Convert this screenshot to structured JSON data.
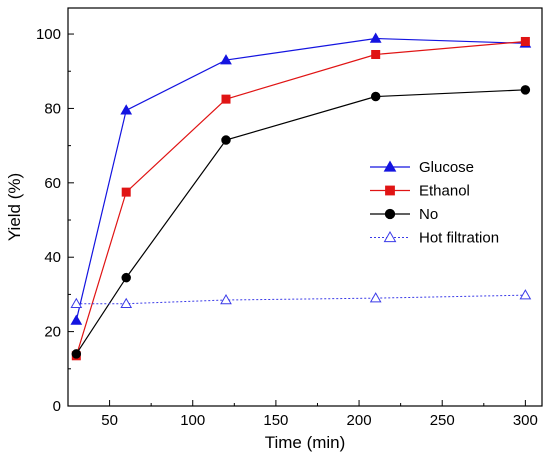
{
  "chart_data": {
    "type": "line",
    "title": "",
    "xlabel": "Time (min)",
    "ylabel": "Yield (%)",
    "xlim": [
      25,
      310
    ],
    "ylim": [
      0,
      107
    ],
    "xticks": [
      50,
      100,
      150,
      200,
      250,
      300
    ],
    "yticks": [
      0,
      20,
      40,
      60,
      80,
      100
    ],
    "grid": false,
    "legend_position": "right",
    "series": [
      {
        "name": "Glucose",
        "color": "#1414e0",
        "marker": "triangle-filled",
        "line": "solid",
        "x": [
          30,
          60,
          120,
          210,
          300
        ],
        "y": [
          23,
          79.5,
          93,
          98.8,
          97.5
        ]
      },
      {
        "name": "Ethanol",
        "color": "#e01414",
        "marker": "square-filled",
        "line": "solid",
        "x": [
          30,
          60,
          120,
          210,
          300
        ],
        "y": [
          13.5,
          57.5,
          82.5,
          94.5,
          98
        ]
      },
      {
        "name": "No",
        "color": "#000000",
        "marker": "circle-filled",
        "line": "solid",
        "x": [
          30,
          60,
          120,
          210,
          300
        ],
        "y": [
          14,
          34.5,
          71.5,
          83.2,
          85
        ]
      },
      {
        "name": "Hot filtration",
        "color": "#3b3be8",
        "marker": "triangle-open",
        "line": "dotted",
        "x": [
          30,
          60,
          120,
          210,
          300
        ],
        "y": [
          27.5,
          27.5,
          28.5,
          29,
          29.8
        ]
      }
    ]
  }
}
